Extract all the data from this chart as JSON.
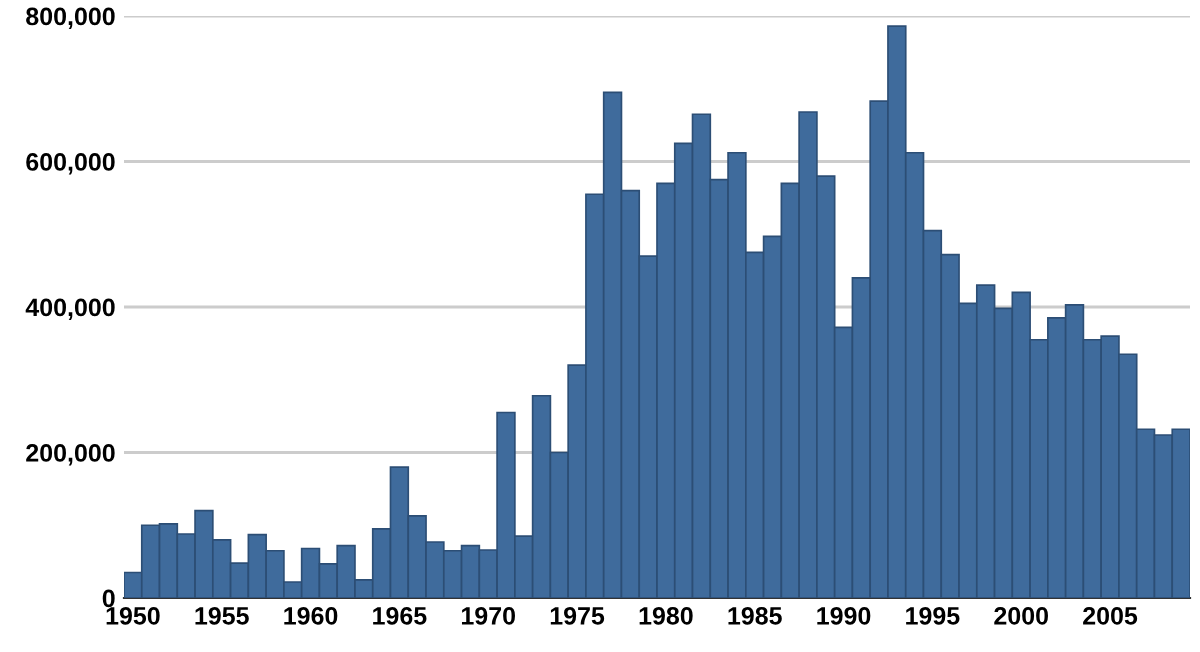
{
  "chart_data": {
    "type": "bar",
    "x": [
      1950,
      1951,
      1952,
      1953,
      1954,
      1955,
      1956,
      1957,
      1958,
      1959,
      1960,
      1961,
      1962,
      1963,
      1964,
      1965,
      1966,
      1967,
      1968,
      1969,
      1970,
      1971,
      1972,
      1973,
      1974,
      1975,
      1976,
      1977,
      1978,
      1979,
      1980,
      1981,
      1982,
      1983,
      1984,
      1985,
      1986,
      1987,
      1988,
      1989,
      1990,
      1991,
      1992,
      1993,
      1994,
      1995,
      1996,
      1997,
      1998,
      1999,
      2000,
      2001,
      2002,
      2003,
      2004,
      2005,
      2006,
      2007,
      2008,
      2009
    ],
    "values": [
      35000,
      100000,
      102000,
      88000,
      120000,
      80000,
      48000,
      87000,
      65000,
      22000,
      68000,
      47000,
      72000,
      25000,
      95000,
      180000,
      113000,
      77000,
      65000,
      72000,
      66000,
      255000,
      85000,
      278000,
      200000,
      320000,
      555000,
      695000,
      560000,
      470000,
      570000,
      625000,
      665000,
      575000,
      612000,
      475000,
      497000,
      570000,
      668000,
      580000,
      372000,
      440000,
      683000,
      786000,
      612000,
      505000,
      472000,
      405000,
      430000,
      398000,
      420000,
      355000,
      385000,
      403000,
      355000,
      360000,
      335000,
      232000,
      224000,
      232000
    ],
    "color": "#3f6b9c",
    "xlim": [
      1949.5,
      2009.5
    ],
    "xticks": [
      1950,
      1955,
      1960,
      1965,
      1970,
      1975,
      1980,
      1985,
      1990,
      1995,
      2000,
      2005
    ],
    "ylim": [
      0,
      800000
    ],
    "yticks": [
      {
        "value": 0,
        "label": "0"
      },
      {
        "value": 200000,
        "label": "200,000"
      },
      {
        "value": 400000,
        "label": "400,000"
      },
      {
        "value": 600000,
        "label": "600,000"
      },
      {
        "value": 800000,
        "label": "800,000"
      }
    ],
    "grid": "y"
  }
}
